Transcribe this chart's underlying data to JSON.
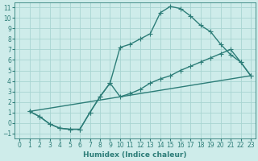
{
  "xlabel": "Humidex (Indice chaleur)",
  "background_color": "#ceecea",
  "grid_color": "#a8d5d2",
  "line_color": "#2d7d78",
  "xlim": [
    -0.5,
    23.5
  ],
  "ylim": [
    -1.5,
    11.5
  ],
  "xticks": [
    0,
    1,
    2,
    3,
    4,
    5,
    6,
    7,
    8,
    9,
    10,
    11,
    12,
    13,
    14,
    15,
    16,
    17,
    18,
    19,
    20,
    21,
    22,
    23
  ],
  "yticks": [
    -1,
    0,
    1,
    2,
    3,
    4,
    5,
    6,
    7,
    8,
    9,
    10,
    11
  ],
  "curve1_x": [
    1,
    2,
    3,
    4,
    5,
    6,
    7,
    8,
    9,
    10,
    11,
    12,
    13,
    14,
    15,
    16,
    17,
    18,
    19,
    20,
    21,
    22,
    23
  ],
  "curve1_y": [
    1.1,
    0.6,
    -0.1,
    -0.5,
    -0.6,
    -0.6,
    1.0,
    2.5,
    3.8,
    7.2,
    7.5,
    8.0,
    8.5,
    10.5,
    11.1,
    10.9,
    10.2,
    9.3,
    8.7,
    7.5,
    6.5,
    5.8,
    4.5
  ],
  "curve2_x": [
    1,
    2,
    3,
    4,
    5,
    6,
    7,
    8,
    9,
    10,
    11,
    12,
    13,
    14,
    15,
    16,
    17,
    18,
    19,
    20,
    21,
    22,
    23
  ],
  "curve2_y": [
    1.1,
    0.6,
    -0.1,
    -0.5,
    -0.6,
    -0.6,
    1.0,
    2.5,
    3.8,
    2.5,
    2.8,
    3.2,
    3.8,
    4.2,
    4.5,
    5.0,
    5.4,
    5.8,
    6.2,
    6.6,
    7.0,
    5.8,
    4.5
  ],
  "curve3_x": [
    1,
    23
  ],
  "curve3_y": [
    1.1,
    4.5
  ],
  "marker": "+",
  "markersize": 4,
  "linewidth": 1.0
}
